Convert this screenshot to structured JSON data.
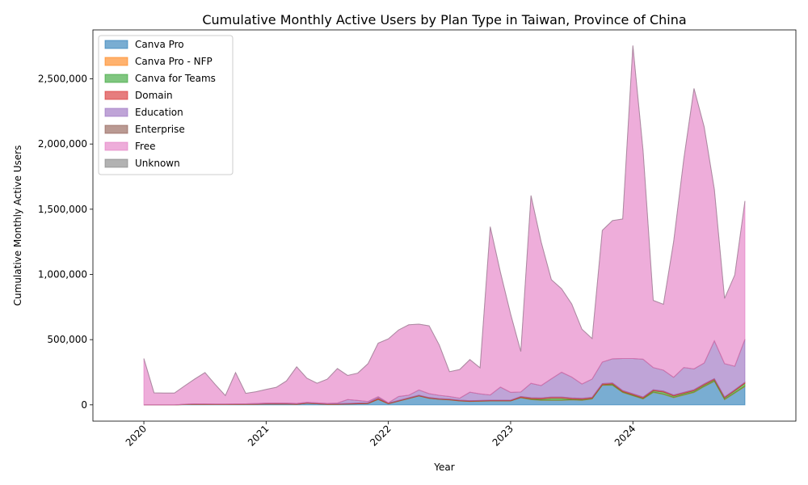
{
  "chart_data": {
    "type": "area",
    "stacked": true,
    "title": "Cumulative Monthly Active Users by Plan Type in Taiwan, Province of China",
    "xlabel": "Year",
    "ylabel": "Cumulative Monthly Active Users",
    "x_ticks": [
      "2020",
      "2021",
      "2022",
      "2023",
      "2024"
    ],
    "y_ticks": [
      "0",
      "500,000",
      "1,000,000",
      "1,500,000",
      "2,000,000",
      "2,500,000"
    ],
    "y_tick_values": [
      0,
      500000,
      1000000,
      1500000,
      2000000,
      2500000
    ],
    "ylim": [
      -125000,
      2875000
    ],
    "xlim": [
      "2019-08",
      "2025-05"
    ],
    "legend_position": "upper-left",
    "grid": false,
    "x": [
      "2020-01",
      "2020-02",
      "2020-03",
      "2020-04",
      "2020-05",
      "2020-06",
      "2020-07",
      "2020-08",
      "2020-09",
      "2020-10",
      "2020-11",
      "2020-12",
      "2021-01",
      "2021-02",
      "2021-03",
      "2021-04",
      "2021-05",
      "2021-06",
      "2021-07",
      "2021-08",
      "2021-09",
      "2021-10",
      "2021-11",
      "2021-12",
      "2022-01",
      "2022-02",
      "2022-03",
      "2022-04",
      "2022-05",
      "2022-06",
      "2022-07",
      "2022-08",
      "2022-09",
      "2022-10",
      "2022-11",
      "2022-12",
      "2023-01",
      "2023-02",
      "2023-03",
      "2023-04",
      "2023-05",
      "2023-06",
      "2023-07",
      "2023-08",
      "2023-09",
      "2023-10",
      "2023-11",
      "2023-12",
      "2024-01",
      "2024-02",
      "2024-03",
      "2024-04",
      "2024-05",
      "2024-06",
      "2024-07",
      "2024-08",
      "2024-09",
      "2024-10",
      "2024-11",
      "2024-12"
    ],
    "series": [
      {
        "name": "Canva Pro",
        "color": "#1f77b4",
        "values": [
          0,
          0,
          0,
          0,
          2000,
          4000,
          3000,
          2000,
          2000,
          3000,
          4000,
          4000,
          6000,
          7000,
          6000,
          4000,
          12000,
          8000,
          4000,
          4000,
          6000,
          8000,
          10000,
          42000,
          8000,
          28000,
          48000,
          68000,
          50000,
          42000,
          38000,
          30000,
          26000,
          28000,
          30000,
          30000,
          30000,
          55000,
          40000,
          35000,
          35000,
          35000,
          38000,
          35000,
          45000,
          150000,
          150000,
          95000,
          70000,
          45000,
          95000,
          80000,
          55000,
          75000,
          95000,
          140000,
          180000,
          40000,
          90000,
          140000
        ]
      },
      {
        "name": "Canva Pro - NFP",
        "color": "#ff7f0e",
        "values": [
          0,
          0,
          0,
          0,
          500,
          500,
          500,
          500,
          500,
          500,
          500,
          500,
          500,
          500,
          500,
          500,
          500,
          500,
          500,
          500,
          500,
          500,
          500,
          1000,
          1000,
          1000,
          1000,
          1000,
          1000,
          1000,
          1000,
          1000,
          1000,
          1000,
          1000,
          1000,
          1000,
          1000,
          2000,
          2000,
          2000,
          2000,
          2000,
          2000,
          2000,
          2000,
          2000,
          2000,
          2000,
          2000,
          3000,
          3000,
          3000,
          3000,
          3000,
          3000,
          3000,
          3000,
          3000,
          5000
        ]
      },
      {
        "name": "Canva for Teams",
        "color": "#2ca02c",
        "values": [
          0,
          0,
          0,
          0,
          0,
          0,
          0,
          0,
          0,
          0,
          0,
          0,
          0,
          0,
          0,
          0,
          0,
          0,
          0,
          0,
          0,
          0,
          0,
          0,
          0,
          0,
          0,
          0,
          0,
          0,
          0,
          0,
          0,
          0,
          0,
          0,
          0,
          0,
          5000,
          8000,
          15000,
          15000,
          5000,
          5000,
          3000,
          3000,
          8000,
          5000,
          5000,
          5000,
          10000,
          15000,
          10000,
          10000,
          10000,
          10000,
          10000,
          10000,
          15000,
          20000
        ]
      },
      {
        "name": "Domain",
        "color": "#d62728",
        "values": [
          0,
          0,
          0,
          0,
          2000,
          3000,
          3000,
          3000,
          3000,
          3000,
          3000,
          3000,
          4000,
          4000,
          4000,
          4000,
          4000,
          4000,
          4000,
          4000,
          4000,
          5000,
          5000,
          10000,
          5000,
          5000,
          5000,
          5000,
          5000,
          5000,
          5000,
          5000,
          5000,
          5000,
          5000,
          5000,
          5000,
          8000,
          8000,
          8000,
          8000,
          8000,
          8000,
          8000,
          8000,
          8000,
          8000,
          8000,
          8000,
          8000,
          8000,
          8000,
          8000,
          8000,
          8000,
          8000,
          8000,
          8000,
          8000,
          8000
        ]
      },
      {
        "name": "Education",
        "color": "#9467bd",
        "values": [
          0,
          0,
          0,
          0,
          1000,
          1000,
          1000,
          1000,
          1000,
          1000,
          1000,
          3000,
          3000,
          3000,
          3000,
          3000,
          3000,
          3000,
          3000,
          5000,
          30000,
          20000,
          10000,
          10000,
          2000,
          30000,
          20000,
          40000,
          30000,
          25000,
          20000,
          15000,
          65000,
          50000,
          40000,
          100000,
          60000,
          35000,
          110000,
          95000,
          140000,
          190000,
          160000,
          110000,
          140000,
          165000,
          185000,
          245000,
          270000,
          290000,
          170000,
          160000,
          135000,
          190000,
          160000,
          160000,
          290000,
          255000,
          180000,
          330000
        ]
      },
      {
        "name": "Enterprise",
        "color": "#8c564b",
        "values": [
          0,
          0,
          0,
          0,
          0,
          0,
          0,
          0,
          0,
          0,
          0,
          0,
          0,
          0,
          0,
          0,
          0,
          0,
          0,
          0,
          0,
          0,
          0,
          0,
          0,
          0,
          0,
          0,
          0,
          0,
          0,
          0,
          0,
          0,
          0,
          0,
          0,
          0,
          0,
          0,
          0,
          0,
          0,
          0,
          0,
          0,
          0,
          0,
          0,
          0,
          0,
          0,
          0,
          0,
          0,
          0,
          0,
          0,
          0,
          0
        ]
      },
      {
        "name": "Free",
        "color": "#e377c2",
        "values": [
          355000,
          92000,
          90000,
          90000,
          140000,
          190000,
          240000,
          150000,
          65000,
          240000,
          80000,
          90000,
          105000,
          120000,
          170000,
          280000,
          185000,
          150000,
          185000,
          265000,
          185000,
          210000,
          290000,
          410000,
          490000,
          510000,
          540000,
          505000,
          520000,
          385000,
          190000,
          220000,
          250000,
          200000,
          1290000,
          880000,
          600000,
          310000,
          1440000,
          1100000,
          760000,
          640000,
          560000,
          420000,
          310000,
          1010000,
          1060000,
          1070000,
          2400000,
          1600000,
          515000,
          505000,
          1040000,
          1600000,
          2150000,
          1810000,
          1160000,
          500000,
          700000,
          1060000
        ]
      },
      {
        "name": "Unknown",
        "color": "#7f7f7f",
        "values": [
          0,
          0,
          0,
          0,
          0,
          0,
          0,
          0,
          0,
          0,
          0,
          0,
          0,
          0,
          0,
          0,
          0,
          0,
          0,
          0,
          0,
          0,
          0,
          0,
          0,
          0,
          0,
          0,
          0,
          0,
          0,
          0,
          0,
          0,
          0,
          0,
          0,
          0,
          0,
          0,
          0,
          0,
          0,
          0,
          0,
          0,
          0,
          0,
          0,
          0,
          0,
          0,
          0,
          0,
          0,
          0,
          0,
          0,
          0,
          0
        ]
      }
    ]
  }
}
